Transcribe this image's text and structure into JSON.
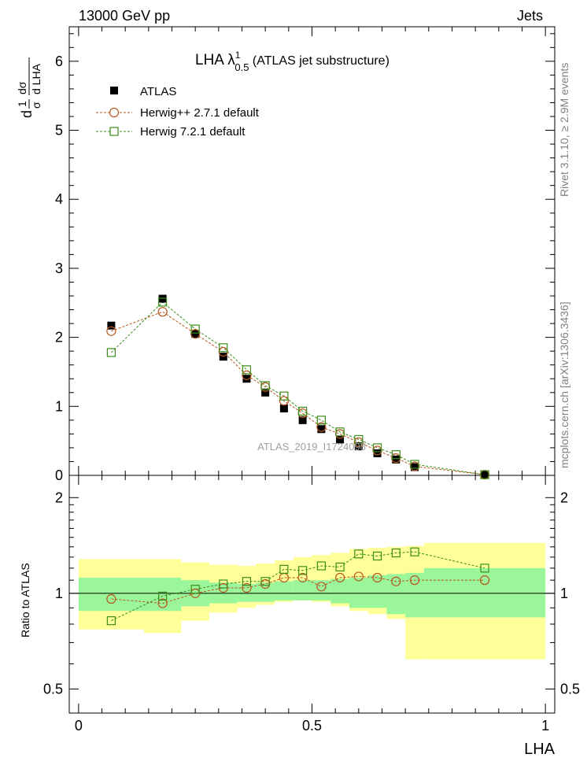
{
  "header": {
    "left": "13000 GeV pp",
    "right": "Jets"
  },
  "side_text": {
    "rivet": "Rivet 3.1.10, ≥ 2.9M events",
    "mcplots": "mcplots.cern.ch [arXiv:1306.3436]"
  },
  "watermark": "ATLAS_2019_I1724098",
  "title": {
    "main": "LHA λ",
    "sup": "1",
    "sub": "0.5",
    "rest": " (ATLAS jet substructure)"
  },
  "ylabel_top": {
    "frac1_num": "1",
    "frac1_den": "σ",
    "frac2_num": "dσ",
    "frac2_den": "d LHA",
    "prefix": "d"
  },
  "ylabel_bottom": "Ratio to ATLAS",
  "xlabel": "LHA",
  "legend": [
    {
      "label": "ATLAS",
      "marker": "filled-square",
      "color": "#000000"
    },
    {
      "label": "Herwig++ 2.7.1 default",
      "marker": "open-circle",
      "color": "#b5561c"
    },
    {
      "label": "Herwig 7.2.1 default",
      "marker": "open-square",
      "color": "#3c8c1c"
    }
  ],
  "colors": {
    "band_inner": "#9bf59b",
    "band_outer": "#ffff99",
    "herwigpp": "#b5561c",
    "herwig7": "#3c8c1c",
    "data": "#000000"
  },
  "chart_data": {
    "type": "scatter",
    "x_edges": [
      0,
      0.14,
      0.22,
      0.28,
      0.34,
      0.38,
      0.42,
      0.46,
      0.5,
      0.54,
      0.58,
      0.62,
      0.66,
      0.7,
      0.74,
      1.0
    ],
    "x": [
      0.07,
      0.18,
      0.25,
      0.31,
      0.36,
      0.4,
      0.44,
      0.48,
      0.52,
      0.56,
      0.6,
      0.64,
      0.68,
      0.72,
      0.87
    ],
    "xlim": [
      -0.02,
      1.02
    ],
    "xticks": [
      "0",
      "0.5",
      "1"
    ],
    "top": {
      "ylim": [
        0,
        6.5
      ],
      "yticks": [
        "0",
        "1",
        "2",
        "3",
        "4",
        "5",
        "6"
      ],
      "series": [
        {
          "name": "ATLAS",
          "values": [
            2.17,
            2.56,
            2.05,
            1.72,
            1.4,
            1.2,
            0.97,
            0.8,
            0.67,
            0.52,
            0.42,
            0.32,
            0.23,
            0.12,
            0.01
          ]
        },
        {
          "name": "Herwig++ 2.7.1 default",
          "values": [
            2.09,
            2.37,
            2.05,
            1.79,
            1.45,
            1.28,
            1.08,
            0.9,
            0.7,
            0.6,
            0.48,
            0.36,
            0.25,
            0.13,
            0.01
          ]
        },
        {
          "name": "Herwig 7.2.1 default",
          "values": [
            1.78,
            2.51,
            2.12,
            1.85,
            1.53,
            1.3,
            1.15,
            0.93,
            0.8,
            0.63,
            0.52,
            0.4,
            0.3,
            0.16,
            0.01
          ]
        }
      ]
    },
    "bottom": {
      "ylim": [
        0.42,
        2.35
      ],
      "log_scale": true,
      "yticks": [
        "0.5",
        "1",
        "2"
      ],
      "ratio_series": [
        {
          "name": "Herwig++ 2.7.1 default",
          "values": [
            0.96,
            0.93,
            1.0,
            1.04,
            1.04,
            1.07,
            1.12,
            1.12,
            1.05,
            1.12,
            1.13,
            1.12,
            1.09,
            1.1,
            1.1
          ]
        },
        {
          "name": "Herwig 7.2.1 default",
          "values": [
            0.82,
            0.98,
            1.03,
            1.07,
            1.09,
            1.09,
            1.19,
            1.18,
            1.22,
            1.21,
            1.33,
            1.31,
            1.34,
            1.35,
            1.2
          ]
        }
      ],
      "band_inner": [
        [
          0.88,
          1.12
        ],
        [
          0.88,
          1.12
        ],
        [
          0.91,
          1.1
        ],
        [
          0.93,
          1.08
        ],
        [
          0.94,
          1.07
        ],
        [
          0.94,
          1.08
        ],
        [
          0.95,
          1.09
        ],
        [
          0.95,
          1.1
        ],
        [
          0.95,
          1.1
        ],
        [
          0.93,
          1.11
        ],
        [
          0.9,
          1.12
        ],
        [
          0.9,
          1.14
        ],
        [
          0.86,
          1.15
        ],
        [
          0.84,
          1.16
        ],
        [
          0.84,
          1.2
        ]
      ],
      "band_outer": [
        [
          0.77,
          1.28
        ],
        [
          0.75,
          1.28
        ],
        [
          0.82,
          1.25
        ],
        [
          0.87,
          1.23
        ],
        [
          0.9,
          1.22
        ],
        [
          0.92,
          1.24
        ],
        [
          0.94,
          1.27
        ],
        [
          0.95,
          1.3
        ],
        [
          0.94,
          1.32
        ],
        [
          0.91,
          1.34
        ],
        [
          0.88,
          1.38
        ],
        [
          0.86,
          1.39
        ],
        [
          0.83,
          1.4
        ],
        [
          0.62,
          1.41
        ],
        [
          0.62,
          1.44
        ]
      ]
    }
  }
}
